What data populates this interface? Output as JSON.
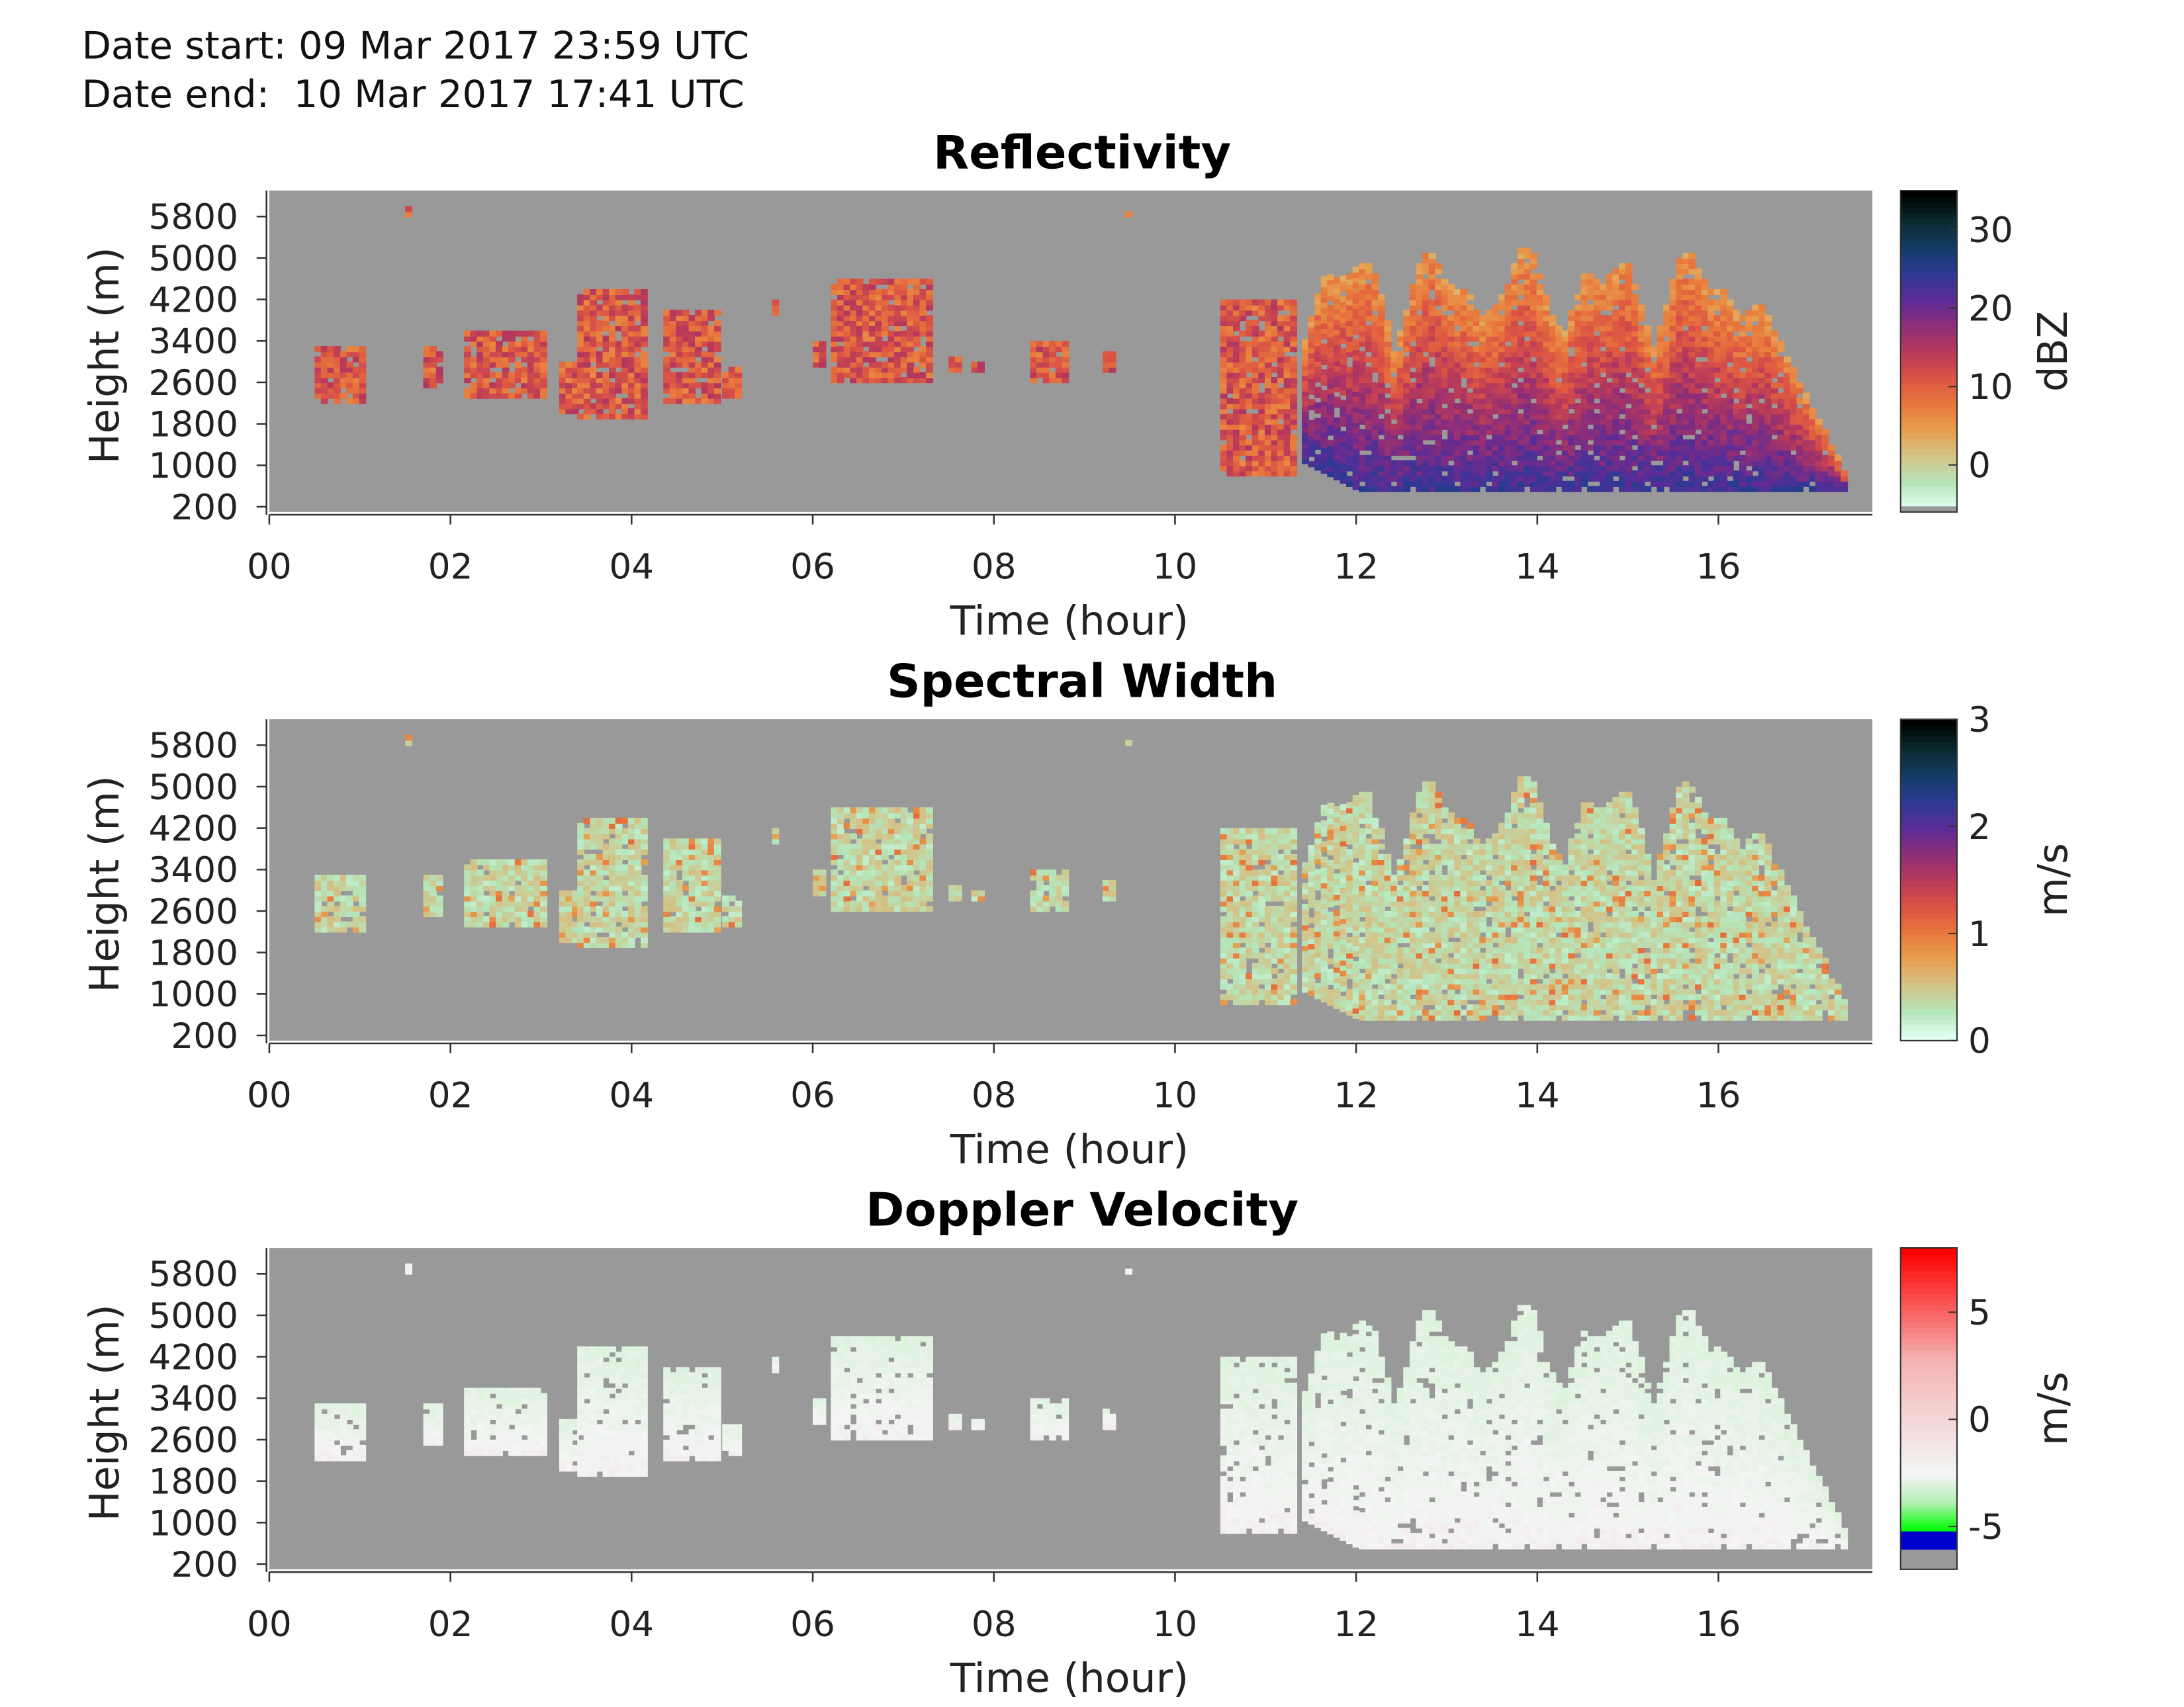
{
  "header": {
    "start_label": "Date start:",
    "start_value": "09 Mar 2017 23:59 UTC",
    "end_label": "Date end:",
    "end_value": "10 Mar 2017 17:41 UTC"
  },
  "colors": {
    "background": "#999999",
    "no_data_swatch": "#999999"
  },
  "chart_data": [
    {
      "type": "heatmap",
      "title": "Reflectivity",
      "xlabel": "Time (hour)",
      "ylabel": "Height (m)",
      "x_ticks": [
        "00",
        "02",
        "04",
        "06",
        "08",
        "10",
        "12",
        "14",
        "16"
      ],
      "y_ticks": [
        "200",
        "1000",
        "1800",
        "2600",
        "3400",
        "4200",
        "5000",
        "5800"
      ],
      "xlim": [
        0,
        17.7
      ],
      "ylim": [
        100,
        6300
      ],
      "colorbar": {
        "label": "dBZ",
        "ticks": [
          "0",
          "10",
          "20",
          "30"
        ],
        "tick_values": [
          0,
          10,
          20,
          30
        ],
        "range": [
          -6,
          35
        ],
        "colormap": [
          "#e6fff6",
          "#b4e6bc",
          "#d2c48a",
          "#e6a050",
          "#e8783c",
          "#dc5444",
          "#b83a5a",
          "#8e2e78",
          "#5a2c96",
          "#2c3a94",
          "#123c64",
          "#0a2a2e",
          "#000000"
        ]
      }
    },
    {
      "type": "heatmap",
      "title": "Spectral Width",
      "xlabel": "Time (hour)",
      "ylabel": "Height (m)",
      "x_ticks": [
        "00",
        "02",
        "04",
        "06",
        "08",
        "10",
        "12",
        "14",
        "16"
      ],
      "y_ticks": [
        "200",
        "1000",
        "1800",
        "2600",
        "3400",
        "4200",
        "5000",
        "5800"
      ],
      "xlim": [
        0,
        17.7
      ],
      "ylim": [
        100,
        6300
      ],
      "colorbar": {
        "label": "m/s",
        "ticks": [
          "0",
          "1",
          "2",
          "3"
        ],
        "tick_values": [
          0,
          1,
          2,
          3
        ],
        "range": [
          0,
          3
        ],
        "colormap": [
          "#e6fff6",
          "#b4e6bc",
          "#d2c48a",
          "#e6a050",
          "#e8783c",
          "#dc5444",
          "#b83a5a",
          "#8e2e78",
          "#5a2c96",
          "#2c3a94",
          "#123c64",
          "#0a2a2e",
          "#000000"
        ]
      }
    },
    {
      "type": "heatmap",
      "title": "Doppler Velocity",
      "xlabel": "Time (hour)",
      "ylabel": "Height (m)",
      "x_ticks": [
        "00",
        "02",
        "04",
        "06",
        "08",
        "10",
        "12",
        "14",
        "16"
      ],
      "y_ticks": [
        "200",
        "1000",
        "1800",
        "2600",
        "3400",
        "4200",
        "5000",
        "5800"
      ],
      "xlim": [
        0,
        17.7
      ],
      "ylim": [
        100,
        6300
      ],
      "colorbar": {
        "label": "m/s",
        "ticks": [
          "-5",
          "0",
          "5"
        ],
        "tick_values": [
          -5,
          0,
          5
        ],
        "range": [
          -7,
          8
        ],
        "colormap": [
          "#999999",
          "#0000cc",
          "#00ff00",
          "#b4f0b4",
          "#f4f4f4",
          "#f4b4b4",
          "#ff0000"
        ]
      }
    }
  ]
}
